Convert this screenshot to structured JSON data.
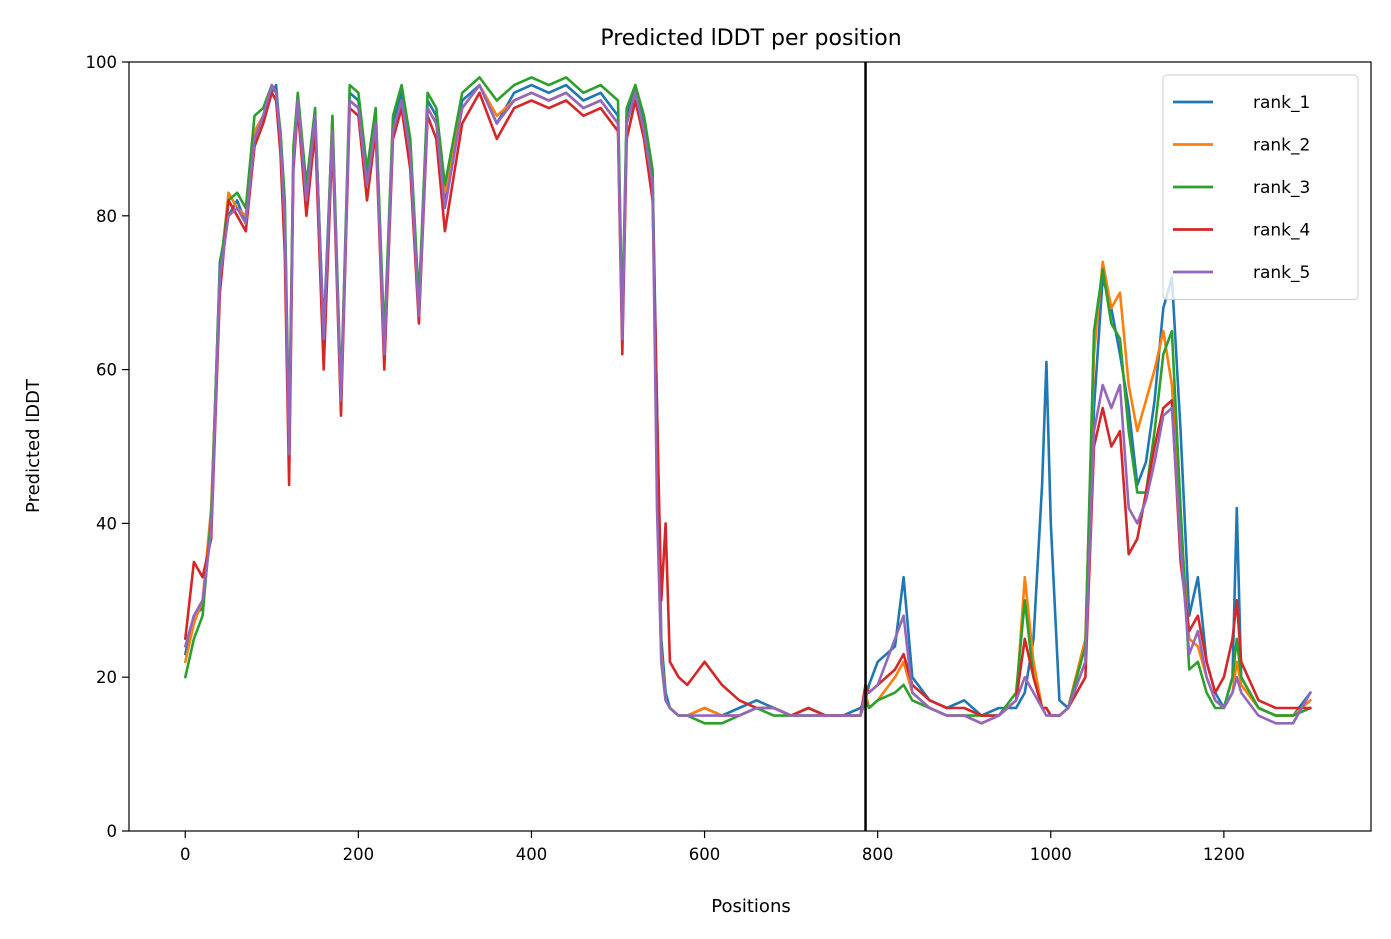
{
  "chart_data": {
    "type": "line",
    "title": "Predicted lDDT per position",
    "xlabel": "Positions",
    "ylabel": "Predicted lDDT",
    "xlim": [
      -65,
      1370
    ],
    "ylim": [
      0,
      100
    ],
    "xticks": [
      0,
      200,
      400,
      600,
      800,
      1000,
      1200
    ],
    "yticks": [
      0,
      20,
      40,
      60,
      80,
      100
    ],
    "grid": false,
    "legend_position": "top-right",
    "vline_x": 786,
    "vline_color": "#000000",
    "x": [
      0,
      10,
      20,
      30,
      40,
      50,
      60,
      70,
      80,
      90,
      100,
      105,
      110,
      115,
      120,
      125,
      130,
      140,
      150,
      160,
      170,
      180,
      190,
      200,
      210,
      220,
      230,
      240,
      250,
      260,
      270,
      280,
      290,
      300,
      320,
      340,
      360,
      380,
      400,
      420,
      440,
      460,
      480,
      500,
      505,
      510,
      520,
      530,
      540,
      545,
      550,
      555,
      560,
      570,
      580,
      600,
      620,
      640,
      660,
      680,
      700,
      720,
      740,
      760,
      780,
      786,
      790,
      800,
      820,
      830,
      840,
      860,
      880,
      900,
      920,
      940,
      960,
      970,
      980,
      990,
      995,
      1000,
      1010,
      1020,
      1040,
      1050,
      1060,
      1070,
      1080,
      1090,
      1100,
      1110,
      1120,
      1130,
      1140,
      1150,
      1160,
      1170,
      1180,
      1190,
      1200,
      1210,
      1215,
      1220,
      1240,
      1260,
      1280,
      1300
    ],
    "series": [
      {
        "name": "rank_1",
        "color": "#1f77b4",
        "values": [
          23,
          28,
          29,
          40,
          74,
          80,
          82,
          79,
          90,
          93,
          96,
          97,
          90,
          80,
          50,
          88,
          95,
          82,
          93,
          65,
          92,
          56,
          96,
          95,
          85,
          93,
          63,
          92,
          96,
          89,
          68,
          95,
          93,
          82,
          95,
          97,
          92,
          96,
          97,
          96,
          97,
          95,
          96,
          93,
          65,
          93,
          97,
          92,
          85,
          55,
          25,
          18,
          16,
          15,
          15,
          16,
          15,
          16,
          17,
          16,
          15,
          16,
          15,
          15,
          16,
          17,
          19,
          22,
          24,
          33,
          20,
          17,
          16,
          17,
          15,
          16,
          16,
          18,
          25,
          45,
          61,
          40,
          17,
          16,
          22,
          55,
          72,
          68,
          62,
          55,
          45,
          48,
          56,
          68,
          72,
          52,
          28,
          33,
          22,
          18,
          16,
          20,
          42,
          20,
          16,
          15,
          15,
          18
        ]
      },
      {
        "name": "rank_2",
        "color": "#ff7f0e",
        "values": [
          22,
          27,
          30,
          42,
          72,
          83,
          81,
          80,
          91,
          93,
          97,
          96,
          89,
          78,
          48,
          88,
          95,
          83,
          92,
          62,
          93,
          55,
          95,
          94,
          84,
          92,
          62,
          91,
          95,
          88,
          67,
          94,
          92,
          83,
          94,
          97,
          93,
          95,
          96,
          95,
          96,
          94,
          95,
          92,
          64,
          92,
          96,
          91,
          83,
          50,
          23,
          17,
          16,
          15,
          15,
          16,
          15,
          15,
          16,
          16,
          15,
          15,
          15,
          15,
          15,
          18,
          16,
          17,
          20,
          22,
          18,
          16,
          15,
          15,
          14,
          15,
          17,
          33,
          22,
          16,
          16,
          15,
          15,
          16,
          25,
          62,
          74,
          68,
          70,
          58,
          52,
          56,
          60,
          65,
          58,
          40,
          25,
          24,
          20,
          17,
          16,
          18,
          22,
          19,
          16,
          15,
          15,
          17
        ]
      },
      {
        "name": "rank_3",
        "color": "#2ca02c",
        "values": [
          20,
          25,
          28,
          41,
          73,
          82,
          83,
          81,
          93,
          94,
          97,
          96,
          91,
          82,
          51,
          89,
          96,
          84,
          94,
          63,
          93,
          57,
          97,
          96,
          86,
          94,
          64,
          93,
          97,
          90,
          69,
          96,
          94,
          84,
          96,
          98,
          95,
          97,
          98,
          97,
          98,
          96,
          97,
          95,
          66,
          94,
          97,
          93,
          86,
          48,
          22,
          17,
          16,
          15,
          15,
          14,
          14,
          15,
          16,
          15,
          15,
          15,
          15,
          15,
          15,
          17,
          16,
          17,
          18,
          19,
          17,
          16,
          15,
          15,
          15,
          15,
          18,
          30,
          20,
          16,
          16,
          15,
          15,
          16,
          24,
          65,
          73,
          66,
          64,
          52,
          44,
          44,
          52,
          62,
          65,
          42,
          21,
          22,
          18,
          16,
          16,
          20,
          25,
          20,
          16,
          15,
          15,
          16
        ]
      },
      {
        "name": "rank_4",
        "color": "#d62728",
        "values": [
          25,
          35,
          33,
          38,
          70,
          82,
          80,
          78,
          89,
          92,
          96,
          95,
          88,
          75,
          45,
          86,
          94,
          80,
          91,
          60,
          90,
          54,
          94,
          93,
          82,
          91,
          60,
          90,
          94,
          86,
          66,
          93,
          90,
          78,
          92,
          96,
          90,
          94,
          95,
          94,
          95,
          93,
          94,
          91,
          62,
          90,
          95,
          90,
          82,
          55,
          30,
          40,
          22,
          20,
          19,
          22,
          19,
          17,
          16,
          16,
          15,
          16,
          15,
          15,
          15,
          19,
          18,
          19,
          21,
          23,
          19,
          17,
          16,
          16,
          15,
          15,
          17,
          25,
          20,
          16,
          16,
          15,
          15,
          16,
          20,
          50,
          55,
          50,
          52,
          36,
          38,
          44,
          50,
          55,
          56,
          35,
          26,
          28,
          22,
          18,
          20,
          25,
          30,
          22,
          17,
          16,
          16,
          16
        ]
      },
      {
        "name": "rank_5",
        "color": "#9467bd",
        "values": [
          24,
          28,
          30,
          39,
          72,
          80,
          81,
          79,
          90,
          93,
          97,
          96,
          90,
          79,
          49,
          87,
          95,
          82,
          93,
          64,
          91,
          56,
          95,
          94,
          84,
          92,
          62,
          91,
          95,
          88,
          67,
          94,
          92,
          81,
          94,
          97,
          92,
          95,
          96,
          95,
          96,
          94,
          95,
          92,
          64,
          92,
          96,
          91,
          84,
          42,
          22,
          17,
          16,
          15,
          15,
          15,
          15,
          15,
          16,
          16,
          15,
          15,
          15,
          15,
          15,
          18,
          18,
          19,
          25,
          28,
          18,
          16,
          15,
          15,
          14,
          15,
          17,
          20,
          18,
          16,
          15,
          15,
          15,
          16,
          22,
          52,
          58,
          55,
          58,
          42,
          40,
          43,
          48,
          54,
          55,
          37,
          23,
          26,
          20,
          17,
          16,
          18,
          20,
          18,
          15,
          14,
          14,
          18
        ]
      }
    ]
  }
}
